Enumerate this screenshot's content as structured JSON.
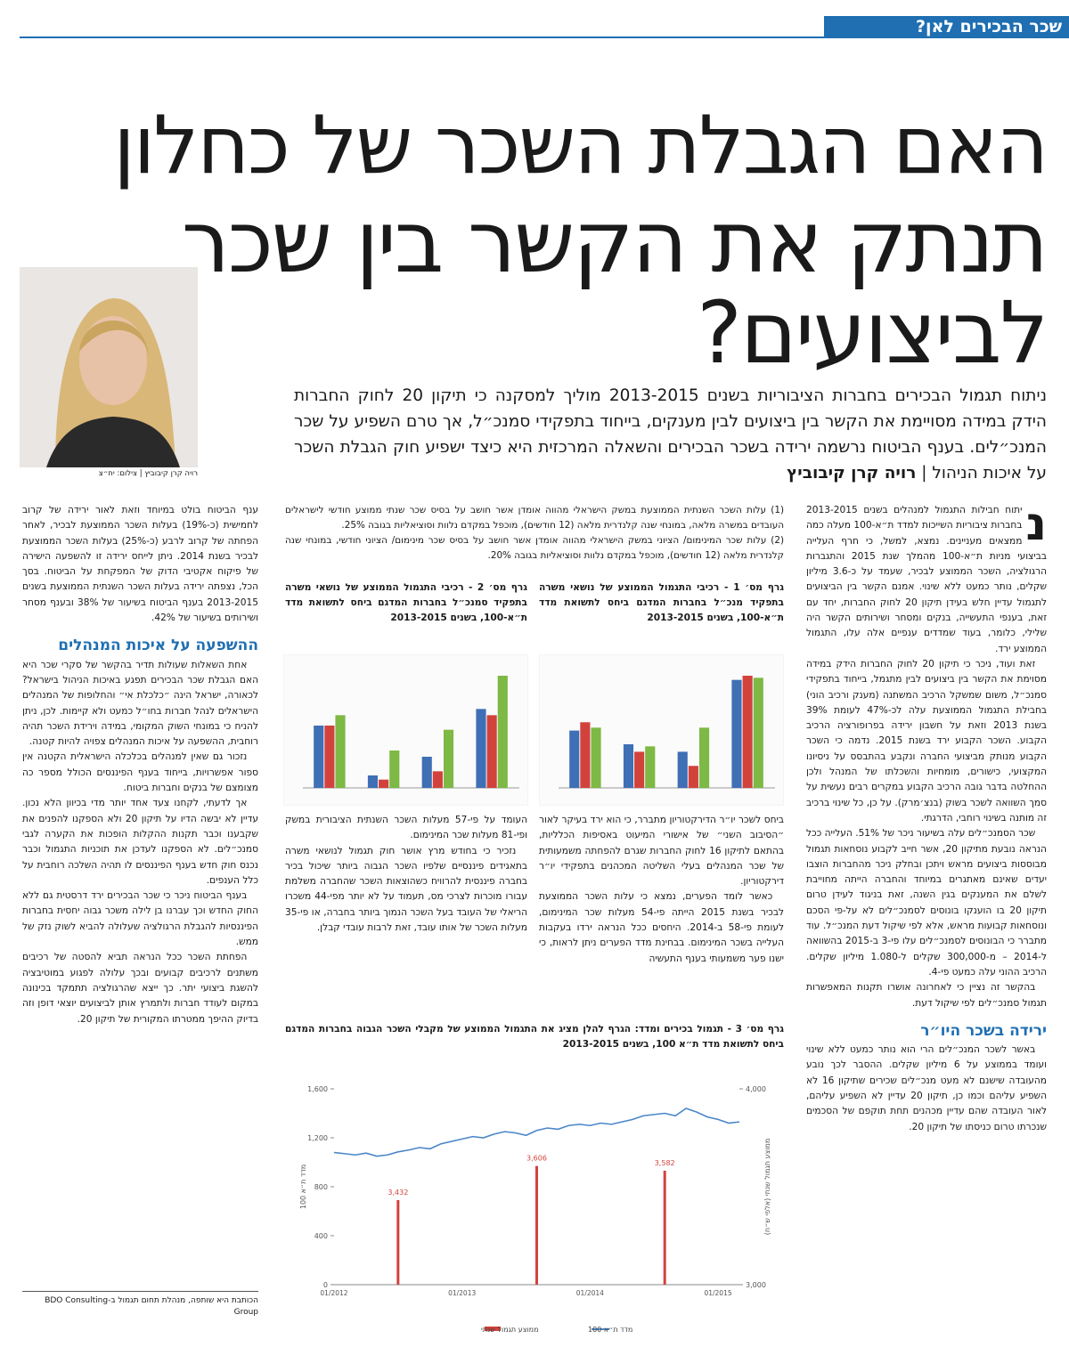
{
  "header": {
    "section": "שכר הבכירים לאן?"
  },
  "title": {
    "lines": [
      "האם הגבלת השכר של כחלון",
      "תנתק את הקשר בין שכר",
      "לביצועים?"
    ]
  },
  "subtitle": "ניתוח תגמול הבכירים בחברות הציבוריות בשנים 2013-2015 מוליך למסקנה כי תיקון 20 לחוק החברות הידק במידה מסויימת את הקשר בין ביצועים לבין מענקים, בייחוד בתפקידי סמנכ״ל, אך טרם השפיע על שכר המנכ״לים. בענף הביטוח נרשמה ירידה בשכר הבכירים והשאלה המרכזית היא כיצד ישפיע חוק הגבלת השכר על איכות הניהול |",
  "byline": "רויה קרן קיבוביץ",
  "photo": {
    "caption": "רויה קרן קיבוביץ | צילום: יח״צ"
  },
  "right_column": {
    "drop_cap": "נ",
    "paragraphs": [
      "יתוח חבילות התגמול למנהלים בשנים 2013-2015 בחברות ציבוריות השייכות למדד ת״א-100 מעלה כמה ממצאים מעניינים. נמצא, למשל, כי חרף העלייה בביצועי מניות ת״א-100 מהמלך שנת 2015 והתגברות הרגולציה, השכר הממוצע לבכיר, שעמד על כ-3.6 מיליון שקלים, נותר כמעט ללא שינוי. אמנם הקשר בין הביצועים לתגמול עדיין חלש בעידן תיקון 20 לחוק החברות, יחד עם זאת, בענפי התעשייה, בנקים ומסחר ושירותים הקשר היה שלילי, כלומר, בעוד שמדדים ענפיים אלה עלו, התגמול הממוצע ירד.",
      "זאת ועוד, ניכר כי תיקון 20 לחוק החברות הידק במידה מסוימת את הקשר בין ביצועים לבין מתגמל, בייחוד בתפקידי סמנכ״ל, משום שמשקל הרכיב המשתנה (מענק ורכיב הוני) בחבילת התגמול הממוצעת עלה לכ-47% לעומת 39% בשנת 2013 וזאת על חשבון ירידה בפרופורציה הרכיב הקבוע. השכר הקבוע ירד בשנת 2015. נדמה כי השכר הקבוע מנותק מביצועי החברה ונקבע בהתבסס על ניסיונו המקצועי, כישורים, מומחיות והשכלתו של המנהל ולכן ההחלטה בדבר גובה הרכיב הקבוע במקרים רבים נעשית על סמך השוואה לשכר בשוק (בנצ׳מרק). על כן, כל שינוי ברכיב זה מותנה בשינוי רוחבי, הדרגתי.",
      "שכר הסמנכ״לים עלה בשיעור ניכר של 51%. העלייה ככל הנראה נובעת מתיקון 20, אשר חייב לקבוע נוסחאות תגמול מבוססות ביצועים מראש ויתכן ובחלק ניכר מהחברות הוצבו יעדים שאינם מאתגרים במיוחד והחברה הייתה מחוייבת לשלם את המענקים בגין השנה, זאת בניגוד לעידן טרום תיקון 20 בו הוענקו בונוסים לסמנכ״לים לא על-פי הסכם ונוסחאות קבועות מראש, אלא לפי שיקול דעת המנכ״ל. עוד מתברר כי הבונוסים לסמנכ״לים עלו פי-3 ב-2015 בהשוואה ל-2014 – מ-300,000 שקלים ל-1.080 מיליון שקלים. הרכיב ההוני עלה כמעט פי-4.",
      "בהקשר זה נציין כי לאחרונה אושרו תקנות המאפשרות תגמול סמנכ״לים לפי שיקול דעת."
    ],
    "subheading": "ירידה בשכר היו״ר",
    "paragraphs_2": [
      "באשר לשכר המנכ״לים הרי הוא נותר כמעט ללא שינוי ועומד בממוצע על 6 מיליון שקלים. ההסבר לכך נובע מהעובדה שישנם לא מעט מנכ״לים שכירים שתיקון 16 לא השפיע עליהם וכמו כן, תיקון 20 עדיין לא השפיע עליהם, לאור העובדה שהם עדיין מכהנים תחת תוקפם של הסכמים שנכרתו טרום כניסתו של תיקון 20."
    ]
  },
  "footnotes": [
    "(1) עלות השכר השנתית הממוצעת במשק הישראלי מהווה אומדן אשר חושב על בסיס שכר שנתי ממוצע חודשי לישראלים העובדים במשרה מלאה, במונחי שנה קלנדרית מלאה (12 חודשים), מוכפל במקדם נלוות וסוציאליות בגובה 25%.",
    "(2) עלות שכר המינימום/ הציוני במשק הישראלי מהווה אומדן אשר חושב על בסיס שכר מינימום/ הציוני חודשי, במונחי שנה קלנדרית מלאה (12 חודשים), מוכפל במקדם נלוות וסוציאליות בגובה 20%."
  ],
  "middle_right_text": [
    "ביחס לשכר יו״ר הדירקטוריון מתברר, כי הוא ירד בעיקר לאור ״הסיבוב השני״ של אישורי המיעוט באסיפות הכלליות, בהתאם לתיקון 16 לחוק החברות שגרם להפחתה משמעותית של שכר המנהלים בעלי השליטה המכהנים בתפקידי יו״ר דירקטוריון.",
    "כאשר לומד הפערים, נמצא כי עלות השכר הממוצעת לבכיר בשנת 2015 הייתה פי-54 מעלות שכר המינימום, לעומת פי-58 ב-2014. היחסים ככל הנראה ירדו בעקבות העלייה בשכר המינימום. בבחינת מדד הפערים ניתן לראות, כי ישנו פער משמעותי בענף התעשיה"
  ],
  "middle_left_text": [
    "העומד על פי-57 מעלות השכר השנתית הציבורית במשק ופי-81 מעלות שכר המינימום.",
    "נזכיר כי בחודש מרץ אושר חוק תגמול לנושאי משרה בתאגידים פיננסיים שלפיו השכר הגבוה ביותר שיכול בכיר בחברה פיננסית להרוויח כשהוצאות השכר שהחברה משלמת עבורו מוכרות לצרכי מס, תעמוד על לא יותר מפי-44 משכרו הריאלי של העובד בעל השכר הנמוך ביותר בחברה, או פי-35 מעלות השכר של אותו עובד, זאת לרבות עובדי קבלן."
  ],
  "left_column": {
    "paragraphs": [
      "ענף הביטוח בולט במיוחד וזאת לאור ירידה של קרוב לחמישית (כ-19%) בעלות השכר הממוצעת לבכיר, לאחר הפחתה של קרוב לרבע (כ-25%) בעלות השכר הממוצעת לבכיר בשנת 2014. ניתן לייחס ירידה זו להשפעה הישירה של פיקוח אקטיבי הדוק של המפקחת על הביטוח. בסך הכל, נצפתה ירידה בעלות השכר השנתית הממוצעת בשנים 2013-2015 בענף הביטוח בשיעור של 38% ובענף מסחר ושירותים בשיעור של 42%."
    ],
    "subheading": "ההשפעה על איכות המנהלים",
    "paragraphs_2": [
      "אחת השאלות שעולות תדיר בהקשר של סקרי שכר היא האם הגבלת שכר הבכירים תפגע באיכות הניהול בישראל? לכאורה, ישראל הינה ״כלכלת אי״ והחלופות של המנהלים הישראלים לנהל חברות בחו״ל כמעט ולא קיימות. לכן, ניתן להניח כי במונחי השוק המקומי, במידה וירידת השכר תהיה רוחבית, ההשפעה על איכות המנהלים צפויה להיות קטנה.",
      "נזכור גם שאין למנהלים בכלכלה הישראלית הקטנה אין ספור אפשרויות, בייחוד בענף הפיננסים הכולל מספר כה מצומצם של בנקים וחברות ביטוח.",
      "אך לדעתי, לקחנו צעד אחד יותר מדי בכיוון הלא נכון. עדיין לא יבשה הדיו על תיקון 20 ולא הספקנו להפנים את שקבענו וכבר תקנות ההקלות הופכות את הקערה לגבי סמנכ״לים. לא הספקנו לעדכן את תוכניות התגמול וכבר נכנס חוק חדש בענף הפיננסים לו תהיה השלכה רוחבית על כלל הענפים.",
      "בענף הביטוח ניכר כי שכר הבכירים ירד דרסטית גם ללא החוק החדש וכך עברנו בן לילה משכר גבוה יחסית בחברות הפיננסיות להגבלת הרגולציה שעלולה להביא לשוק נזק של ממש.",
      "הפחתת השכר ככל הנראה תביא להסטה של רכיבים משתנים לרכיבים קבועים ובכך עלולה לפגוע במוטיבציה להשגת ביצועי יתר. כך ייצא שהרגולציה תתמקד בכינונה במקום לעודד חברות ולתמרץ אותן לביצועים יוצאי דופן וזה בדיוק ההיפך ממטרתו המקורית של תיקון 20."
    ]
  },
  "author_note": "הכותבת היא שותפה, מנהלת תחום תגמול ב-BDO Consulting Group",
  "charts": [
    {
      "type": "bar",
      "caption": "גרף מס׳ 1 - רכיבי התגמול הממוצע של נושאי משרה בתפקיד מנכ״ל בחברות המדגם ביחס לתשואת מדד ת״א-100, בשנים 2013-2015",
      "ylim": [
        0,
        3000
      ],
      "series": [
        {
          "color": "#3f6fb5",
          "values": [
            1380,
            1050,
            870,
            2600
          ]
        },
        {
          "color": "#d2423d",
          "values": [
            1580,
            870,
            530,
            2700
          ]
        },
        {
          "color": "#7db944",
          "values": [
            1450,
            1000,
            1450,
            2650
          ]
        }
      ]
    },
    {
      "type": "bar",
      "caption": "גרף מס׳ 2 - רכיבי התגמול הממוצע של נושאי משרה בתפקיד סמנכ״ל בחברות המדגם ביחס לתשואת מדד ת״א-100, בשנים 2013-2015",
      "ylim": [
        0,
        3000
      ],
      "series": [
        {
          "color": "#3f6fb5",
          "values": [
            1500,
            300,
            750,
            1900
          ]
        },
        {
          "color": "#d2423d",
          "values": [
            1500,
            200,
            400,
            1750
          ]
        },
        {
          "color": "#7db944",
          "values": [
            1750,
            900,
            1400,
            2700
          ]
        }
      ]
    },
    {
      "type": "line",
      "caption": "גרף מס׳ 3 - תגמול בכירים ומדד: הגרף להלן מציג את התגמול הממוצע של מקבלי השכר הגבוה בחברות המדגם ביחס לתשואת מדד ת״א 100, בשנים 2013-2015",
      "categories": [
        "01/2012",
        null,
        null,
        null,
        null,
        null,
        null,
        null,
        null,
        null,
        null,
        null,
        "01/2013",
        null,
        null,
        null,
        null,
        null,
        null,
        null,
        null,
        null,
        null,
        null,
        "01/2014",
        null,
        null,
        null,
        null,
        null,
        null,
        null,
        null,
        null,
        null,
        null,
        "01/2015",
        null,
        null
      ],
      "ylim": [
        0,
        1600
      ],
      "yticks": [
        0,
        400,
        800,
        {
          "value": 1200,
          "label": "1,200"
        },
        {
          "value": 1600,
          "label": "1,600"
        }
      ],
      "y2lim": [
        3000,
        4000
      ],
      "y2ticks": [
        {
          "value": 3000,
          "label": "3,000"
        },
        {
          "value": 4000,
          "label": "4,000"
        }
      ],
      "ylabel": "מדד ת״א 100",
      "y2label": "ממוצע תגמול שנתי (אלפי ש״ח)",
      "series": [
        {
          "name": "מדד ת״א 100",
          "color": "#4a86c8",
          "values": [
            1080,
            1070,
            1060,
            1075,
            1050,
            1060,
            1085,
            1100,
            1120,
            1110,
            1150,
            1170,
            1190,
            1210,
            1200,
            1230,
            1250,
            1240,
            1220,
            1260,
            1280,
            1270,
            1300,
            1310,
            1300,
            1320,
            1310,
            1330,
            1350,
            1380,
            1390,
            1400,
            1380,
            1440,
            1410,
            1370,
            1350,
            1320,
            1330
          ]
        },
        {
          "name": "ממוצע תגמול שנתי",
          "color": "#d2423d",
          "axis": "y2",
          "values": [
            null,
            null,
            null,
            null,
            null,
            null,
            3432,
            null,
            null,
            null,
            null,
            null,
            null,
            null,
            null,
            null,
            null,
            null,
            null,
            3606,
            null,
            null,
            null,
            null,
            null,
            null,
            null,
            null,
            null,
            null,
            null,
            3582,
            null,
            null,
            null,
            null,
            null,
            null,
            null
          ],
          "value_labels": [
            null,
            null,
            null,
            null,
            null,
            null,
            "3,432",
            null,
            null,
            null,
            null,
            null,
            null,
            null,
            null,
            null,
            null,
            null,
            null,
            "3,606",
            null,
            null,
            null,
            null,
            null,
            null,
            null,
            null,
            null,
            null,
            null,
            "3,582",
            null,
            null,
            null,
            null,
            null,
            null,
            null
          ]
        }
      ]
    }
  ]
}
